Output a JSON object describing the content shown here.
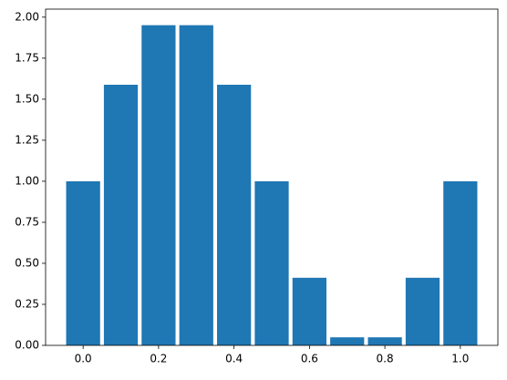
{
  "chart_data": {
    "type": "bar",
    "x": [
      0.0,
      0.1,
      0.2,
      0.3,
      0.4,
      0.5,
      0.6,
      0.7,
      0.8,
      0.9,
      1.0
    ],
    "values": [
      1.0,
      1.588,
      1.951,
      1.951,
      1.588,
      1.0,
      0.412,
      0.049,
      0.049,
      0.412,
      1.0
    ],
    "color": "#1f77b4",
    "xlim": [
      -0.0995,
      1.0995
    ],
    "xticks": [
      {
        "value": 0,
        "label": "0.0"
      },
      0.2,
      0.4,
      0.6,
      0.8,
      {
        "value": 1,
        "label": "1.0"
      }
    ],
    "ylim": [
      0,
      2.049
    ],
    "yticks": [
      {
        "value": 0,
        "label": "0.00"
      },
      0.25,
      {
        "value": 0.5,
        "label": "0.50"
      },
      0.75,
      {
        "value": 1,
        "label": "1.00"
      },
      1.25,
      {
        "value": 1.5,
        "label": "1.50"
      },
      1.75,
      {
        "value": 2,
        "label": "2.00"
      }
    ],
    "grid": false
  }
}
